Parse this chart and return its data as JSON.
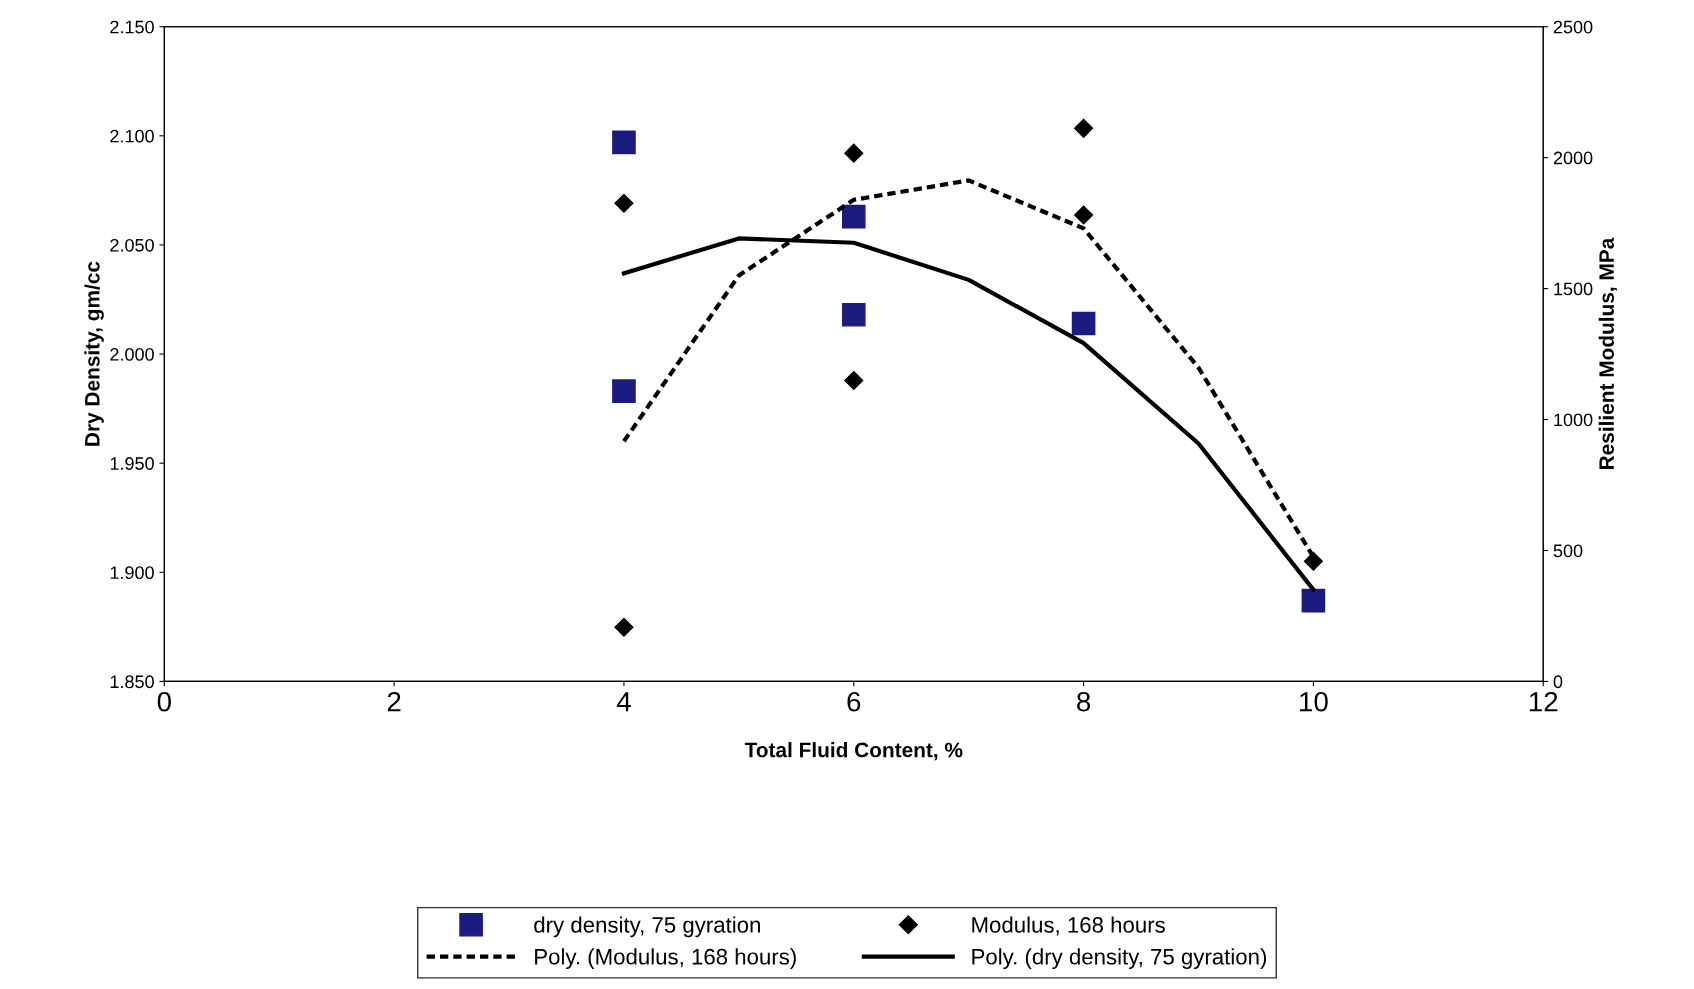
{
  "chart_data": {
    "type": "scatter",
    "xlabel": "Total Fluid Content, %",
    "ylabel": "Dry Density, gm/cc",
    "y2label": "Resilient Modulus, MPa",
    "xlim": [
      0,
      12
    ],
    "xticks": [
      0,
      2,
      4,
      6,
      8,
      10,
      12
    ],
    "ylim": [
      1.85,
      2.15
    ],
    "yticks": [
      {
        "value": 1.85,
        "label": "1.850"
      },
      {
        "value": 1.9,
        "label": "1.900"
      },
      {
        "value": 1.95,
        "label": "1.950"
      },
      {
        "value": 2.0,
        "label": "2.000"
      },
      {
        "value": 2.05,
        "label": "2.050"
      },
      {
        "value": 2.1,
        "label": "2.100"
      },
      {
        "value": 2.15,
        "label": "2.150"
      }
    ],
    "y2lim": [
      0,
      2500
    ],
    "y2ticks": [
      0,
      500,
      1000,
      1500,
      2000,
      2500
    ],
    "grid": false,
    "legend": "bottom",
    "series": [
      {
        "name": "dry density, 75 gyration",
        "marker": "square",
        "color": "#1c1c80",
        "x": [
          4,
          4,
          6,
          6,
          8,
          10
        ],
        "values": [
          2.097,
          1.983,
          2.063,
          2.018,
          2.014,
          1.887
        ]
      },
      {
        "name": "Modulus, 168 hours",
        "marker": "diamond",
        "axis": "y2",
        "color": "#000000",
        "x": [
          4,
          4,
          6,
          6,
          8,
          8,
          10
        ],
        "values": [
          1826,
          207,
          2017,
          1149,
          2112,
          1781,
          459
        ]
      },
      {
        "name": "Poly. (Modulus, 168 hours)",
        "type": "line",
        "line_style": "dashed",
        "axis": "y2",
        "color": "#000000",
        "x": [
          4,
          5,
          6,
          7,
          8,
          9,
          10
        ],
        "values": [
          917,
          1550,
          1839,
          1913,
          1730,
          1198,
          475
        ]
      },
      {
        "name": "Poly. (dry density, 75 gyration)",
        "type": "line",
        "line_style": "solid",
        "color": "#000000",
        "x": [
          4,
          5,
          6,
          7,
          8,
          9,
          10
        ],
        "values": [
          2.037,
          2.053,
          2.051,
          2.034,
          2.005,
          1.959,
          1.892
        ]
      }
    ]
  }
}
